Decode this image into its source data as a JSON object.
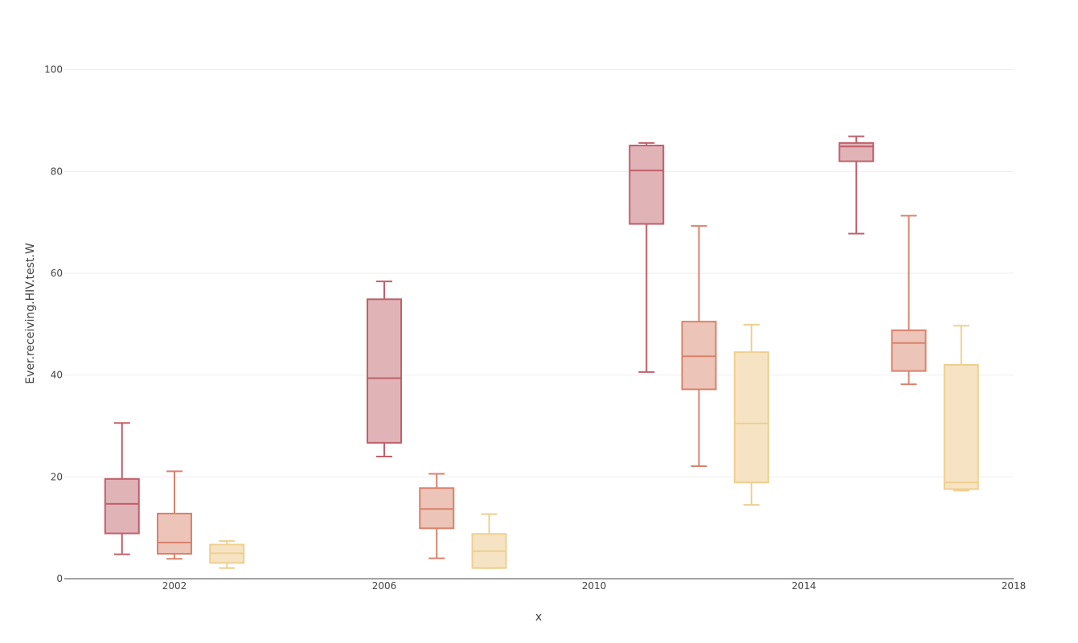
{
  "chart_data": {
    "type": "box",
    "xlabel": "x",
    "ylabel": "Ever.receiving.HIV.test.W",
    "xlim": [
      1999.9,
      2018
    ],
    "ylim": [
      0,
      105
    ],
    "x_ticks": [
      2002,
      2006,
      2010,
      2014,
      2018
    ],
    "y_ticks": [
      0,
      20,
      40,
      60,
      80,
      100
    ],
    "grid": true,
    "legend": "none",
    "colors": [
      "#c0606b",
      "#d9826c",
      "#eecf8f"
    ],
    "fill_colors": [
      "#e0b3b7",
      "#ecc4b8",
      "#f6e3c3"
    ],
    "boxes": [
      {
        "group": 0,
        "x": 2001,
        "min": 4.8,
        "q1": 8.9,
        "median": 14.7,
        "q3": 19.6,
        "max": 30.6
      },
      {
        "group": 1,
        "x": 2002,
        "min": 3.9,
        "q1": 4.9,
        "median": 7.1,
        "q3": 12.8,
        "max": 21.1
      },
      {
        "group": 2,
        "x": 2003,
        "min": 2.1,
        "q1": 3.1,
        "median": 5.0,
        "q3": 6.7,
        "max": 7.4
      },
      {
        "group": 0,
        "x": 2006,
        "min": 24.0,
        "q1": 26.7,
        "median": 39.4,
        "q3": 54.9,
        "max": 58.4
      },
      {
        "group": 1,
        "x": 2007,
        "min": 4.0,
        "q1": 9.9,
        "median": 13.7,
        "q3": 17.8,
        "max": 20.6
      },
      {
        "group": 2,
        "x": 2008,
        "min": 2.1,
        "q1": 2.1,
        "median": 5.4,
        "q3": 8.8,
        "max": 12.7
      },
      {
        "group": 0,
        "x": 2011,
        "min": 40.6,
        "q1": 69.7,
        "median": 80.2,
        "q3": 85.1,
        "max": 85.6
      },
      {
        "group": 1,
        "x": 2012,
        "min": 22.1,
        "q1": 37.2,
        "median": 43.7,
        "q3": 50.5,
        "max": 69.3
      },
      {
        "group": 2,
        "x": 2013,
        "min": 14.5,
        "q1": 18.9,
        "median": 30.5,
        "q3": 44.5,
        "max": 49.9
      },
      {
        "group": 0,
        "x": 2015,
        "min": 67.8,
        "q1": 82.0,
        "median": 84.9,
        "q3": 85.6,
        "max": 86.9
      },
      {
        "group": 1,
        "x": 2016,
        "min": 38.2,
        "q1": 40.8,
        "median": 46.3,
        "q3": 48.8,
        "max": 71.3
      },
      {
        "group": 2,
        "x": 2017,
        "min": 17.3,
        "q1": 17.6,
        "median": 18.9,
        "q3": 42.0,
        "max": 49.7
      }
    ]
  }
}
